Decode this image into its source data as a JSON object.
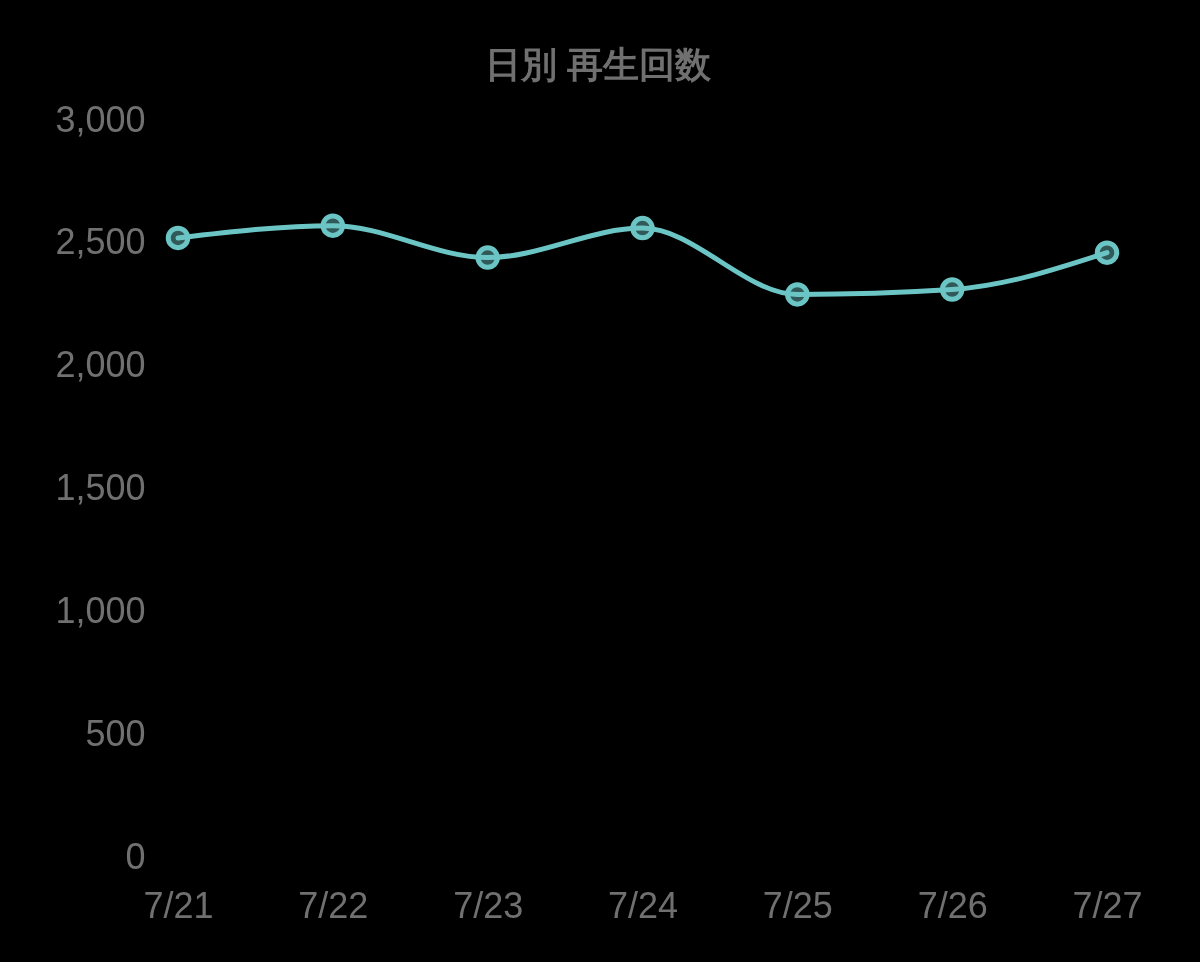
{
  "chart_data": {
    "type": "line",
    "title": "日別 再生回数",
    "categories": [
      "7/21",
      "7/22",
      "7/23",
      "7/24",
      "7/25",
      "7/26",
      "7/27"
    ],
    "series": [
      {
        "color": "#6cc5c5",
        "values": [
          2520,
          2570,
          2440,
          2560,
          2290,
          2310,
          2460
        ]
      }
    ],
    "ylim": [
      0,
      3000
    ],
    "yticks": [
      0,
      500,
      {
        "value": 1000,
        "label": "1,000"
      },
      {
        "value": 1500,
        "label": "1,500"
      },
      {
        "value": 2000,
        "label": "2,000"
      },
      {
        "value": 2500,
        "label": "2,500"
      },
      {
        "value": 3000,
        "label": "3,000"
      }
    ],
    "grid": false,
    "marker": "circle",
    "line_style": "solid"
  }
}
